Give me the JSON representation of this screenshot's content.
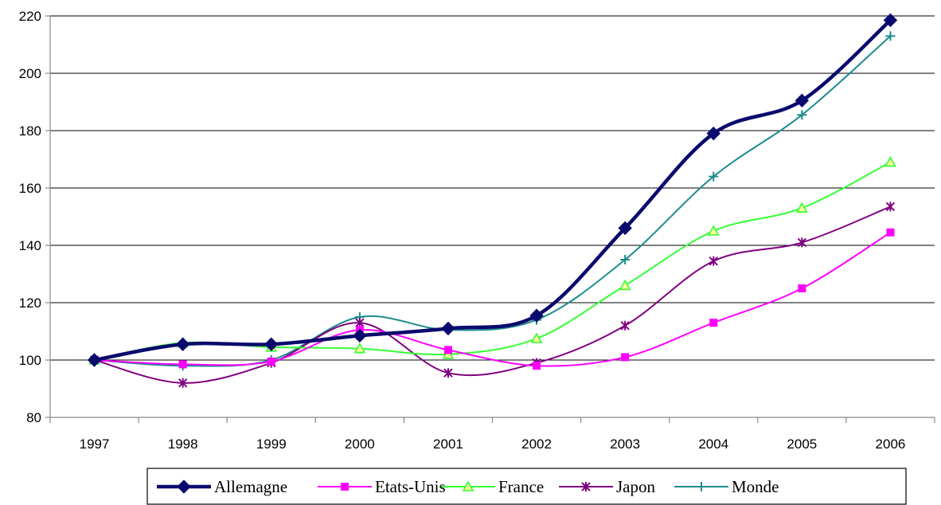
{
  "chart_data": {
    "type": "line",
    "title": "",
    "xlabel": "",
    "ylabel": "",
    "categories": [
      "1997",
      "1998",
      "1999",
      "2000",
      "2001",
      "2002",
      "2003",
      "2004",
      "2005",
      "2006"
    ],
    "ylim": [
      80,
      220
    ],
    "yticks": [
      "80",
      "100",
      "120",
      "140",
      "160",
      "180",
      "200",
      "220"
    ],
    "grid": true,
    "smooth": true,
    "legend_position": "bottom",
    "series": [
      {
        "name": "Allemagne",
        "color": "#0a0a6e",
        "marker": "diamond",
        "thick": true,
        "values": [
          100,
          105.5,
          105.5,
          108.5,
          111,
          115.5,
          146,
          179,
          190.5,
          218.5
        ]
      },
      {
        "name": "Etats-Unis",
        "color": "#ff00ff",
        "marker": "square",
        "thick": false,
        "values": [
          100,
          98.5,
          99.5,
          110.5,
          103.5,
          98,
          101,
          113,
          125,
          144.5
        ]
      },
      {
        "name": "France",
        "color": "#33ff33",
        "marker": "triangle",
        "thick": false,
        "values": [
          100,
          106,
          104.5,
          104,
          102,
          107.5,
          126,
          145,
          153,
          169
        ]
      },
      {
        "name": "Japon",
        "color": "#800080",
        "marker": "star",
        "thick": false,
        "values": [
          100,
          92,
          99,
          113,
          95.5,
          99,
          112,
          134.5,
          141,
          153.5
        ]
      },
      {
        "name": "Monde",
        "color": "#1e8c8c",
        "marker": "plus",
        "thick": false,
        "values": [
          100,
          98,
          100,
          115,
          110.5,
          114,
          135,
          164,
          185.5,
          213
        ]
      }
    ]
  }
}
